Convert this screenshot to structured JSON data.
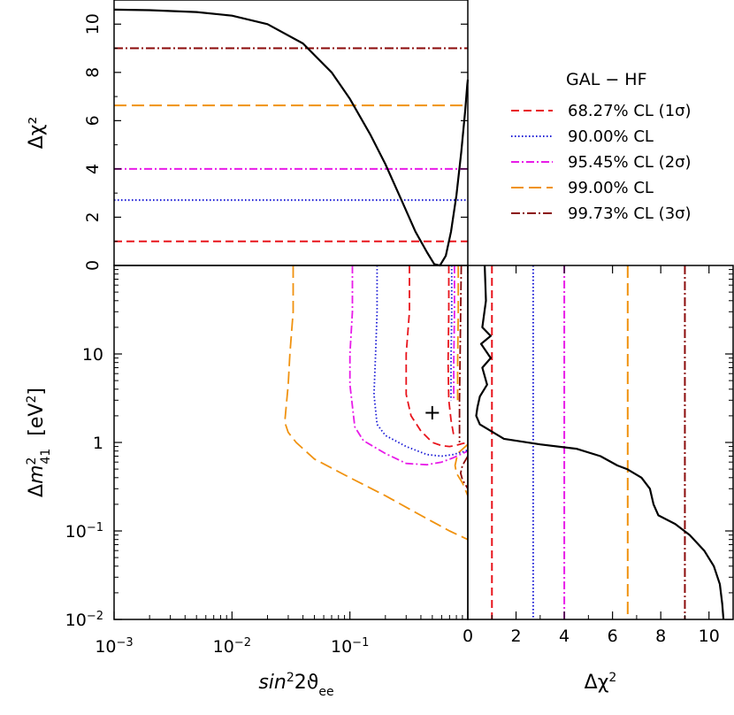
{
  "chart_data": [
    {
      "panel": "top",
      "type": "line",
      "ylabel": "Δχ²",
      "xscale": "log",
      "xlim": [
        0.001,
        1
      ],
      "ylim": [
        0,
        11
      ],
      "yticks": [
        0,
        2,
        4,
        6,
        8,
        10
      ],
      "ytick_labels": [
        "0",
        "2",
        "4",
        "6",
        "8",
        "10"
      ],
      "series": [
        {
          "key": "profile",
          "color": "#000000",
          "x": [
            0.001,
            0.002,
            0.005,
            0.01,
            0.02,
            0.04,
            0.07,
            0.1,
            0.15,
            0.2,
            0.28,
            0.36,
            0.45,
            0.52,
            0.58,
            0.65,
            0.72,
            0.8,
            0.88,
            0.95,
            0.99,
            1.0
          ],
          "y": [
            10.6,
            10.58,
            10.5,
            10.35,
            10.0,
            9.2,
            8.0,
            6.9,
            5.4,
            4.2,
            2.6,
            1.4,
            0.55,
            0.05,
            0.0,
            0.4,
            1.4,
            2.9,
            4.7,
            6.4,
            7.5,
            7.7
          ]
        }
      ],
      "levels": [
        {
          "key": "cl1",
          "y": 1.0
        },
        {
          "key": "cl90",
          "y": 2.71
        },
        {
          "key": "cl2",
          "y": 4.0
        },
        {
          "key": "cl99",
          "y": 6.63
        },
        {
          "key": "cl3",
          "y": 9.0
        }
      ]
    },
    {
      "panel": "main",
      "type": "line",
      "xlabel": "sin²2ϑee",
      "ylabel": "Δm²41 [eV²]",
      "xscale": "log",
      "yscale": "log",
      "xlim": [
        0.001,
        1
      ],
      "ylim": [
        0.01,
        100
      ],
      "xticks": [
        0.001,
        0.01,
        0.1
      ],
      "xtick_labels": [
        {
          "base": "10",
          "exp": "−3"
        },
        {
          "base": "10",
          "exp": "−2"
        },
        {
          "base": "10",
          "exp": "−1"
        }
      ],
      "yticks": [
        0.01,
        0.1,
        1,
        10
      ],
      "ytick_labels": [
        {
          "base": "10",
          "exp": "−2"
        },
        {
          "base": "10",
          "exp": "−1"
        },
        {
          "base": "1",
          "exp": ""
        },
        {
          "base": "10",
          "exp": ""
        }
      ],
      "best_fit": {
        "x": 0.5,
        "y": 2.2,
        "label": "+"
      },
      "contours": [
        {
          "key": "cl99",
          "x": [
            0.033,
            0.033,
            0.031,
            0.03,
            0.028,
            0.03,
            0.035,
            0.05,
            0.1,
            0.2,
            0.4,
            0.7,
            1.0
          ],
          "y": [
            100,
            30,
            10,
            4.5,
            1.7,
            1.3,
            1.0,
            0.65,
            0.4,
            0.25,
            0.15,
            0.1,
            0.08
          ]
        },
        {
          "key": "cl99",
          "x": [
            1.0,
            0.82,
            0.78,
            0.8,
            0.9,
            1.0
          ],
          "y": [
            0.95,
            0.75,
            0.55,
            0.45,
            0.35,
            0.25
          ]
        },
        {
          "key": "cl99",
          "x": [
            0.83,
            0.83,
            0.82,
            0.82
          ],
          "y": [
            100,
            30,
            8,
            3
          ]
        },
        {
          "key": "cl2",
          "x": [
            0.105,
            0.105,
            0.1,
            0.1,
            0.11,
            0.13,
            0.2,
            0.3,
            0.45,
            0.6,
            0.75,
            0.9,
            1.0
          ],
          "y": [
            100,
            30,
            10,
            4.5,
            1.5,
            1.05,
            0.75,
            0.58,
            0.56,
            0.6,
            0.67,
            0.75,
            0.8
          ]
        },
        {
          "key": "cl2",
          "x": [
            0.77,
            0.77,
            0.76,
            0.76
          ],
          "y": [
            100,
            30,
            8,
            3
          ]
        },
        {
          "key": "cl90",
          "x": [
            0.17,
            0.17,
            0.165,
            0.16,
            0.17,
            0.2,
            0.3,
            0.45,
            0.6,
            0.75,
            0.9,
            1.0
          ],
          "y": [
            100,
            30,
            10,
            3.5,
            1.6,
            1.2,
            0.9,
            0.73,
            0.7,
            0.73,
            0.78,
            0.82
          ]
        },
        {
          "key": "cl90",
          "x": [
            0.73,
            0.73,
            0.72,
            0.72
          ],
          "y": [
            100,
            30,
            8,
            3
          ]
        },
        {
          "key": "cl1",
          "x": [
            0.32,
            0.32,
            0.3,
            0.3,
            0.33,
            0.4,
            0.5,
            0.6,
            0.7,
            0.8,
            0.9,
            1.0
          ],
          "y": [
            100,
            30,
            10,
            3.5,
            2.0,
            1.35,
            1.0,
            0.92,
            0.9,
            0.93,
            0.97,
            1.0
          ]
        },
        {
          "key": "cl1",
          "x": [
            0.69,
            0.69,
            0.68,
            0.69,
            0.72,
            0.76
          ],
          "y": [
            100,
            30,
            8,
            3,
            1.8,
            1.2
          ]
        },
        {
          "key": "cl3",
          "x": [
            0.88,
            0.87,
            0.86,
            0.85,
            0.85
          ],
          "y": [
            100,
            30,
            10,
            3.0,
            1.0
          ]
        },
        {
          "key": "cl3",
          "x": [
            1.0,
            0.9,
            0.87,
            0.9,
            1.0
          ],
          "y": [
            0.7,
            0.55,
            0.45,
            0.38,
            0.3
          ]
        }
      ]
    },
    {
      "panel": "right",
      "type": "line",
      "xlabel": "Δχ²",
      "yscale": "log",
      "xlim": [
        0,
        11
      ],
      "ylim": [
        0.01,
        100
      ],
      "xticks": [
        0,
        2,
        4,
        6,
        8,
        10
      ],
      "xtick_labels": [
        "0",
        "2",
        "4",
        "6",
        "8",
        "10"
      ],
      "series": [
        {
          "key": "profile",
          "color": "#000000",
          "x": [
            0.7,
            0.75,
            0.6,
            0.95,
            0.55,
            0.95,
            0.6,
            0.8,
            0.5,
            0.4,
            0.35,
            0.5,
            1.5,
            3.0,
            4.5,
            5.5,
            6.2,
            6.6,
            7.2,
            7.55,
            7.7,
            7.9,
            8.6,
            9.2,
            9.8,
            10.2,
            10.45,
            10.55,
            10.6
          ],
          "y": [
            100,
            40,
            20,
            16,
            13,
            9,
            7,
            4.5,
            3.3,
            2.5,
            2.0,
            1.6,
            1.1,
            0.95,
            0.85,
            0.7,
            0.55,
            0.5,
            0.4,
            0.3,
            0.2,
            0.15,
            0.12,
            0.09,
            0.06,
            0.04,
            0.025,
            0.015,
            0.01
          ]
        }
      ],
      "levels": [
        {
          "key": "cl1",
          "x": 1.0
        },
        {
          "key": "cl90",
          "x": 2.71
        },
        {
          "key": "cl2",
          "x": 4.0
        },
        {
          "key": "cl99",
          "x": 6.63
        },
        {
          "key": "cl3",
          "x": 9.0
        }
      ]
    }
  ],
  "legend": {
    "title": "GAL − HF",
    "placement": "top-right",
    "entries": [
      {
        "key": "cl1",
        "label": "68.27% CL (1σ)",
        "color": "#e8141c",
        "dash": "9 5"
      },
      {
        "key": "cl90",
        "label": "90.00% CL",
        "color": "#1a1ad6",
        "dash": "1.5 2.5"
      },
      {
        "key": "cl2",
        "label": "95.45% CL (2σ)",
        "color": "#e81ce8",
        "dash": "9 3 2 3"
      },
      {
        "key": "cl99",
        "label": "99.00% CL",
        "color": "#f0920f",
        "dash": "14 6"
      },
      {
        "key": "cl3",
        "label": "99.73% CL (3σ)",
        "color": "#8b0a0a",
        "dash": "10 3 2 3"
      }
    ]
  }
}
